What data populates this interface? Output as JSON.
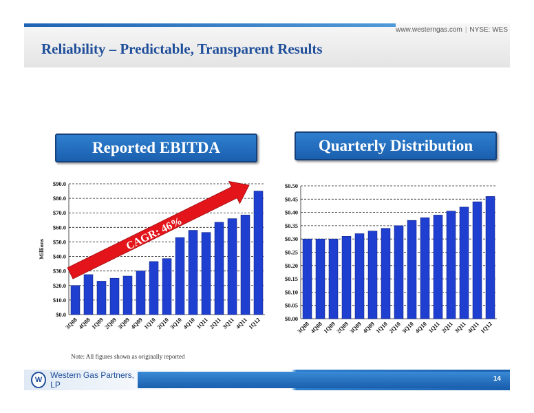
{
  "header": {
    "website": "www.westerngas.com",
    "ticker": "NYSE: WES",
    "title": "Reliability – Predictable, Transparent Results"
  },
  "panels": {
    "left_title": "Reported EBITDA",
    "right_title": "Quarterly Distribution"
  },
  "chart_data": [
    {
      "type": "bar",
      "name": "ebitda",
      "categories": [
        "3Q08",
        "4Q08",
        "1Q09",
        "2Q09",
        "3Q09",
        "4Q09",
        "1Q10",
        "2Q10",
        "3Q10",
        "4Q10",
        "1Q11",
        "2Q11",
        "3Q11",
        "4Q11",
        "1Q12"
      ],
      "values": [
        20,
        27.5,
        23,
        25,
        26.5,
        30,
        36.5,
        38.5,
        53,
        58,
        56.5,
        63.5,
        66,
        68.5,
        85
      ],
      "ylabel": "Millions",
      "ylim": [
        0,
        90
      ],
      "yticks": [
        0,
        10,
        20,
        30,
        40,
        50,
        60,
        70,
        80,
        90
      ],
      "ytick_labels": [
        "$0.0",
        "$10.0",
        "$20.0",
        "$30.0",
        "$40.0",
        "$50.0",
        "$60.0",
        "$70.0",
        "$80.0",
        "$90.0"
      ],
      "bar_color": "#1f3fd1",
      "grid": "dashed horizontal",
      "annotation": "CAGR: 46%",
      "annotation_color": "#e3151a"
    },
    {
      "type": "bar",
      "name": "distribution",
      "categories": [
        "3Q08",
        "4Q08",
        "1Q09",
        "2Q09",
        "3Q09",
        "4Q09",
        "1Q10",
        "2Q10",
        "3Q10",
        "4Q10",
        "1Q11",
        "2Q11",
        "3Q11",
        "4Q11",
        "1Q12"
      ],
      "values": [
        0.3,
        0.3,
        0.3,
        0.31,
        0.32,
        0.33,
        0.34,
        0.35,
        0.37,
        0.38,
        0.39,
        0.405,
        0.42,
        0.44,
        0.46
      ],
      "ylim": [
        0,
        0.5
      ],
      "yticks": [
        0,
        0.05,
        0.1,
        0.15,
        0.2,
        0.25,
        0.3,
        0.35,
        0.4,
        0.45,
        0.5
      ],
      "ytick_labels": [
        "$0.00",
        "$0.05",
        "$0.10",
        "$0.15",
        "$0.20",
        "$0.25",
        "$0.30",
        "$0.35",
        "$0.40",
        "$0.45",
        "$0.50"
      ],
      "bar_color": "#1f3fd1",
      "grid": "dashed horizontal"
    }
  ],
  "note": "Note: All figures shown as originally reported",
  "footer": {
    "logo_mark": "W",
    "company": "Western Gas Partners, LP",
    "page_number": "14"
  }
}
